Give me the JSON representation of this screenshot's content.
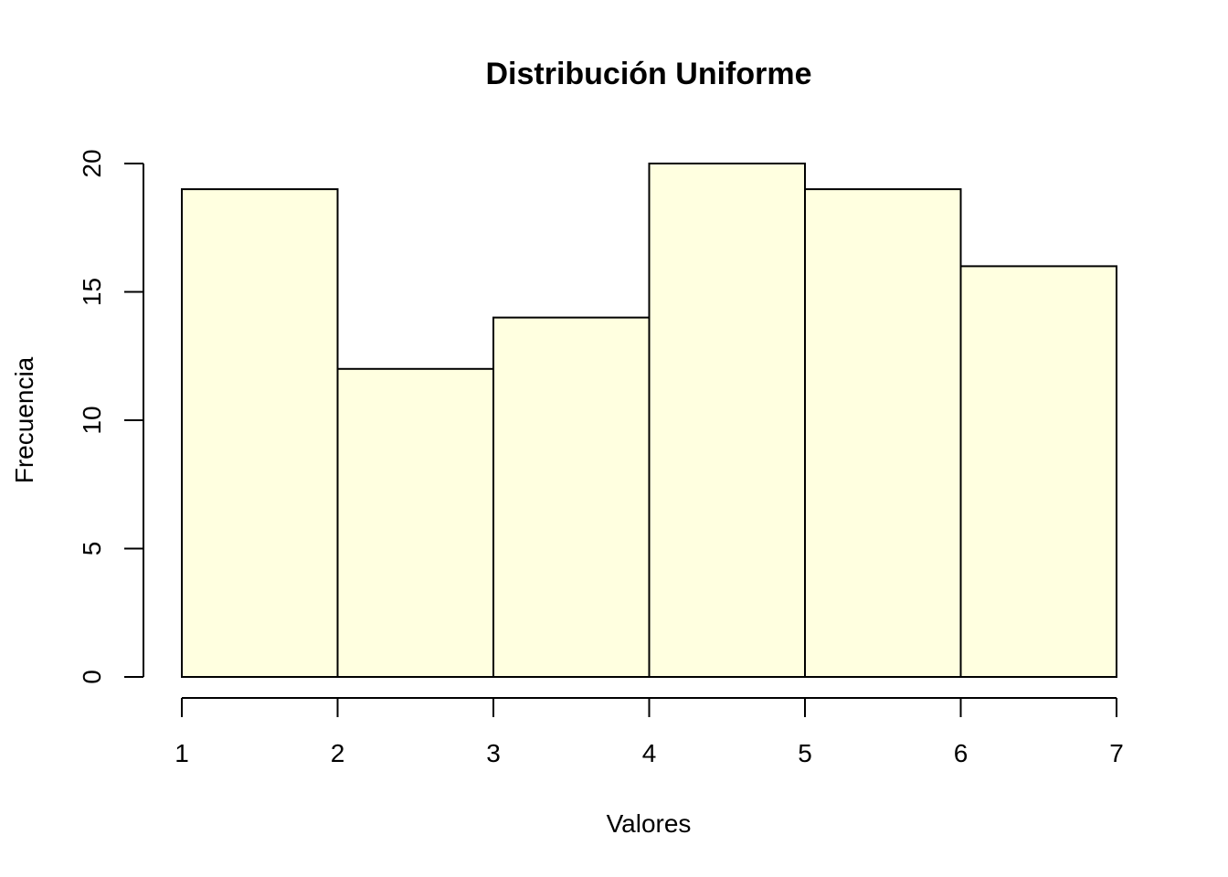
{
  "chart_data": {
    "type": "bar",
    "subtype": "histogram",
    "title": "Distribución Uniforme",
    "xlabel": "Valores",
    "ylabel": "Frecuencia",
    "bins": [
      {
        "from": 1,
        "to": 2,
        "value": 19
      },
      {
        "from": 2,
        "to": 3,
        "value": 12
      },
      {
        "from": 3,
        "to": 4,
        "value": 14
      },
      {
        "from": 4,
        "to": 5,
        "value": 20
      },
      {
        "from": 5,
        "to": 6,
        "value": 19
      },
      {
        "from": 6,
        "to": 7,
        "value": 16
      }
    ],
    "xlim": [
      1,
      7
    ],
    "ylim": [
      0,
      20
    ],
    "x_ticks": [
      "1",
      "2",
      "3",
      "4",
      "5",
      "6",
      "7"
    ],
    "y_ticks": [
      "0",
      "5",
      "10",
      "15",
      "20"
    ],
    "grid": false,
    "colors": {
      "bar_fill": "#FFFFE0",
      "bar_stroke": "#000000"
    }
  }
}
